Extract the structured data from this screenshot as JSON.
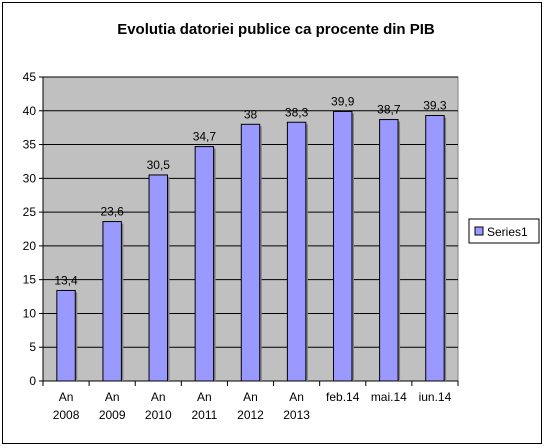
{
  "chart_data": {
    "type": "bar",
    "title": "Evolutia datoriei publice ca procente din PIB",
    "categories": [
      [
        "An",
        "2008"
      ],
      [
        "An",
        "2009"
      ],
      [
        "An",
        "2010"
      ],
      [
        "An",
        "2011"
      ],
      [
        "An",
        "2012"
      ],
      [
        "An",
        "2013"
      ],
      [
        "feb.14"
      ],
      [
        "mai.14"
      ],
      [
        "iun.14"
      ]
    ],
    "series": [
      {
        "name": "Series1",
        "values": [
          13.4,
          23.6,
          30.5,
          34.7,
          38,
          38.3,
          39.9,
          38.7,
          39.3
        ],
        "labels": [
          "13,4",
          "23,6",
          "30,5",
          "34,7",
          "38",
          "38,3",
          "39,9",
          "38,7",
          "39,3"
        ],
        "color": "#9999ff"
      }
    ],
    "ylim": [
      0,
      45
    ],
    "yticks": [
      0,
      5,
      10,
      15,
      20,
      25,
      30,
      35,
      40,
      45
    ],
    "grid": true,
    "plot_background": "#c0c0c0",
    "legend": "right"
  }
}
